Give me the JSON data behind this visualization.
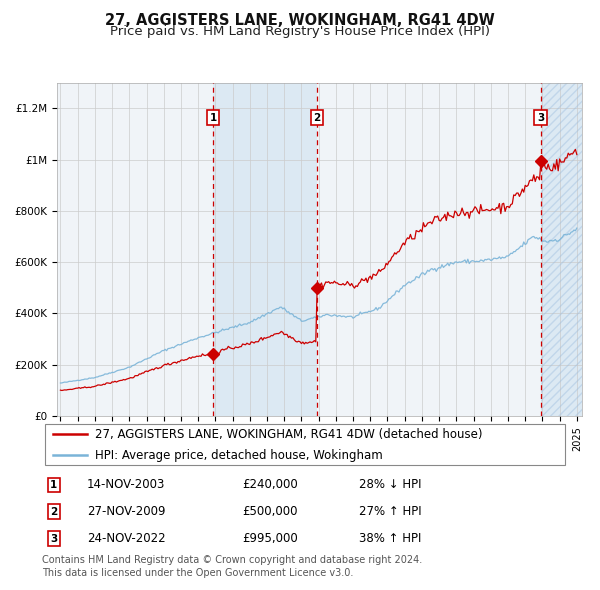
{
  "title": "27, AGGISTERS LANE, WOKINGHAM, RG41 4DW",
  "subtitle": "Price paid vs. HM Land Registry's House Price Index (HPI)",
  "ylim": [
    0,
    1300000
  ],
  "yticks": [
    0,
    200000,
    400000,
    600000,
    800000,
    1000000,
    1200000
  ],
  "ytick_labels": [
    "£0",
    "£200K",
    "£400K",
    "£600K",
    "£800K",
    "£1M",
    "£1.2M"
  ],
  "sale_prices": [
    240000,
    500000,
    995000
  ],
  "sale_labels": [
    "1",
    "2",
    "3"
  ],
  "sale_hpi_pct": [
    "28% ↓ HPI",
    "27% ↑ HPI",
    "38% ↑ HPI"
  ],
  "sale_date_labels": [
    "14-NOV-2003",
    "27-NOV-2009",
    "24-NOV-2022"
  ],
  "sale_price_labels": [
    "£240,000",
    "£500,000",
    "£995,000"
  ],
  "legend_line1": "27, AGGISTERS LANE, WOKINGHAM, RG41 4DW (detached house)",
  "legend_line2": "HPI: Average price, detached house, Wokingham",
  "footer": "Contains HM Land Registry data © Crown copyright and database right 2024.\nThis data is licensed under the Open Government Licence v3.0.",
  "hpi_color": "#7ab4d8",
  "price_color": "#cc0000",
  "shade_color": "#cce0f0",
  "background_color": "#ffffff",
  "grid_color": "#cccccc",
  "title_fontsize": 10.5,
  "subtitle_fontsize": 9.5,
  "tick_fontsize": 7.5,
  "legend_fontsize": 8.5,
  "footer_fontsize": 7,
  "x_start_year": 1995,
  "x_end_year": 2025
}
